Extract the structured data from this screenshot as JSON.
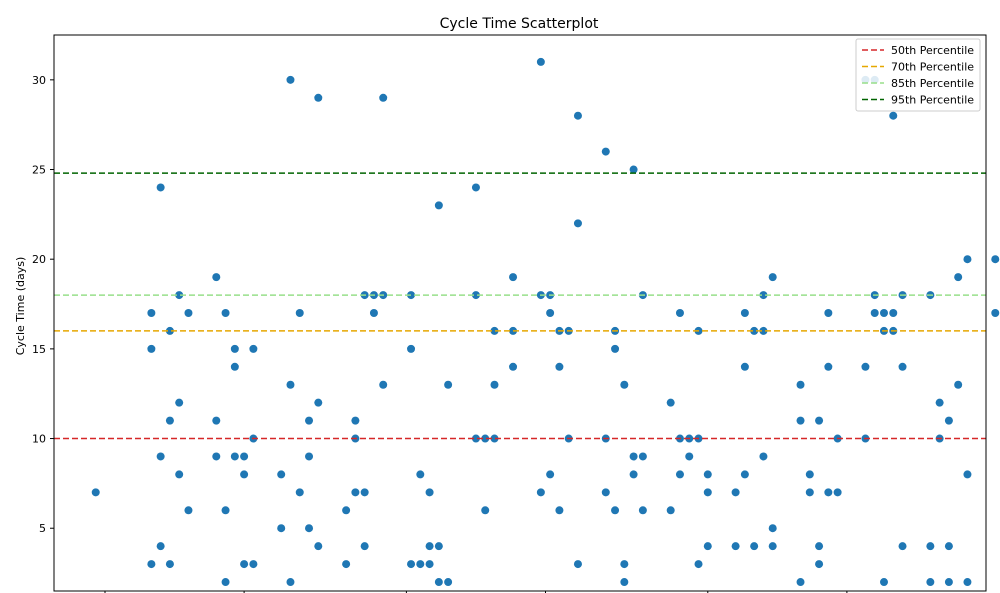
{
  "chart_data": {
    "type": "scatter",
    "title": "Cycle Time Scatterplot",
    "xlabel": "",
    "ylabel": "Cycle Time (days)",
    "ylim": [
      1.5,
      32.5
    ],
    "yticks": [
      5,
      10,
      15,
      20,
      25,
      30
    ],
    "x_index_range": [
      -1,
      200
    ],
    "grid": false,
    "legend_position": "top-right",
    "point_color": "#1f77b4",
    "percentiles": [
      {
        "name": "50th Percentile",
        "value": 10.0,
        "color": "#d62728"
      },
      {
        "name": "70th Percentile",
        "value": 16.0,
        "color": "#e6a800"
      },
      {
        "name": "85th Percentile",
        "value": 18.0,
        "color": "#98df8a"
      },
      {
        "name": "95th Percentile",
        "value": 24.8,
        "color": "#006400"
      }
    ],
    "points": [
      [
        8,
        7
      ],
      [
        20,
        17
      ],
      [
        20,
        15
      ],
      [
        20,
        3
      ],
      [
        22,
        24
      ],
      [
        22,
        9
      ],
      [
        22,
        4
      ],
      [
        24,
        16
      ],
      [
        24,
        11
      ],
      [
        24,
        3
      ],
      [
        26,
        18
      ],
      [
        26,
        12
      ],
      [
        26,
        8
      ],
      [
        28,
        17
      ],
      [
        28,
        6
      ],
      [
        34,
        19
      ],
      [
        34,
        11
      ],
      [
        34,
        9
      ],
      [
        36,
        17
      ],
      [
        36,
        6
      ],
      [
        36,
        2
      ],
      [
        38,
        15
      ],
      [
        38,
        14
      ],
      [
        38,
        9
      ],
      [
        40,
        9
      ],
      [
        40,
        8
      ],
      [
        40,
        3
      ],
      [
        42,
        15
      ],
      [
        42,
        10
      ],
      [
        42,
        3
      ],
      [
        48,
        8
      ],
      [
        48,
        5
      ],
      [
        50,
        30
      ],
      [
        50,
        13
      ],
      [
        50,
        2
      ],
      [
        52,
        17
      ],
      [
        52,
        7
      ],
      [
        54,
        11
      ],
      [
        54,
        9
      ],
      [
        54,
        5
      ],
      [
        56,
        29
      ],
      [
        56,
        12
      ],
      [
        56,
        4
      ],
      [
        62,
        6
      ],
      [
        62,
        3
      ],
      [
        64,
        11
      ],
      [
        64,
        10
      ],
      [
        64,
        7
      ],
      [
        66,
        18
      ],
      [
        66,
        7
      ],
      [
        66,
        4
      ],
      [
        68,
        18
      ],
      [
        68,
        17
      ],
      [
        70,
        29
      ],
      [
        70,
        18
      ],
      [
        70,
        13
      ],
      [
        76,
        18
      ],
      [
        76,
        15
      ],
      [
        76,
        3
      ],
      [
        78,
        8
      ],
      [
        78,
        3
      ],
      [
        80,
        7
      ],
      [
        80,
        4
      ],
      [
        80,
        3
      ],
      [
        82,
        23
      ],
      [
        82,
        4
      ],
      [
        82,
        2
      ],
      [
        84,
        13
      ],
      [
        84,
        2
      ],
      [
        90,
        24
      ],
      [
        90,
        18
      ],
      [
        90,
        10
      ],
      [
        92,
        10
      ],
      [
        92,
        6
      ],
      [
        94,
        16
      ],
      [
        94,
        13
      ],
      [
        94,
        10
      ],
      [
        98,
        19
      ],
      [
        98,
        16
      ],
      [
        98,
        14
      ],
      [
        104,
        31
      ],
      [
        104,
        18
      ],
      [
        104,
        7
      ],
      [
        106,
        18
      ],
      [
        106,
        17
      ],
      [
        106,
        8
      ],
      [
        108,
        16
      ],
      [
        108,
        14
      ],
      [
        108,
        6
      ],
      [
        110,
        16
      ],
      [
        110,
        10
      ],
      [
        112,
        28
      ],
      [
        112,
        22
      ],
      [
        112,
        3
      ],
      [
        118,
        26
      ],
      [
        118,
        10
      ],
      [
        118,
        7
      ],
      [
        120,
        16
      ],
      [
        120,
        15
      ],
      [
        120,
        6
      ],
      [
        122,
        13
      ],
      [
        122,
        3
      ],
      [
        122,
        2
      ],
      [
        124,
        25
      ],
      [
        124,
        9
      ],
      [
        124,
        8
      ],
      [
        126,
        18
      ],
      [
        126,
        9
      ],
      [
        126,
        6
      ],
      [
        132,
        12
      ],
      [
        132,
        6
      ],
      [
        134,
        17
      ],
      [
        134,
        10
      ],
      [
        134,
        8
      ],
      [
        136,
        10
      ],
      [
        136,
        9
      ],
      [
        138,
        16
      ],
      [
        138,
        10
      ],
      [
        138,
        3
      ],
      [
        140,
        8
      ],
      [
        140,
        7
      ],
      [
        140,
        4
      ],
      [
        146,
        7
      ],
      [
        146,
        4
      ],
      [
        148,
        17
      ],
      [
        148,
        14
      ],
      [
        148,
        8
      ],
      [
        150,
        16
      ],
      [
        150,
        4
      ],
      [
        152,
        18
      ],
      [
        152,
        16
      ],
      [
        152,
        9
      ],
      [
        154,
        19
      ],
      [
        154,
        5
      ],
      [
        154,
        4
      ],
      [
        160,
        13
      ],
      [
        160,
        11
      ],
      [
        160,
        2
      ],
      [
        162,
        8
      ],
      [
        162,
        7
      ],
      [
        164,
        11
      ],
      [
        164,
        4
      ],
      [
        164,
        3
      ],
      [
        166,
        17
      ],
      [
        166,
        14
      ],
      [
        166,
        7
      ],
      [
        168,
        10
      ],
      [
        168,
        7
      ],
      [
        174,
        30
      ],
      [
        174,
        14
      ],
      [
        174,
        10
      ],
      [
        176,
        30
      ],
      [
        176,
        18
      ],
      [
        176,
        17
      ],
      [
        178,
        17
      ],
      [
        178,
        16
      ],
      [
        178,
        2
      ],
      [
        180,
        28
      ],
      [
        180,
        17
      ],
      [
        180,
        16
      ],
      [
        182,
        18
      ],
      [
        182,
        14
      ],
      [
        182,
        4
      ],
      [
        188,
        18
      ],
      [
        188,
        4
      ],
      [
        188,
        2
      ],
      [
        190,
        12
      ],
      [
        190,
        10
      ],
      [
        192,
        11
      ],
      [
        192,
        4
      ],
      [
        192,
        2
      ],
      [
        194,
        19
      ],
      [
        194,
        13
      ],
      [
        196,
        20
      ],
      [
        196,
        8
      ],
      [
        196,
        2
      ],
      [
        202,
        20
      ],
      [
        202,
        17
      ]
    ]
  }
}
